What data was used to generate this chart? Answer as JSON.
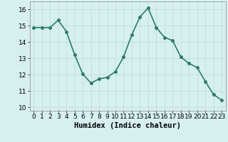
{
  "x": [
    0,
    1,
    2,
    3,
    4,
    5,
    6,
    7,
    8,
    9,
    10,
    11,
    12,
    13,
    14,
    15,
    16,
    17,
    18,
    19,
    20,
    21,
    22,
    23
  ],
  "y": [
    14.9,
    14.9,
    14.9,
    15.35,
    14.65,
    13.25,
    12.05,
    11.5,
    11.75,
    11.85,
    12.2,
    13.1,
    14.45,
    15.55,
    16.1,
    14.9,
    14.3,
    14.1,
    13.1,
    12.7,
    12.45,
    11.6,
    10.8,
    10.45
  ],
  "line_color": "#2e7b6b",
  "marker": "o",
  "marker_size": 2.5,
  "bg_color": "#d6f0ef",
  "grid_color": "#c0dedd",
  "xlabel": "Humidex (Indice chaleur)",
  "xlim": [
    -0.5,
    23.5
  ],
  "ylim": [
    9.8,
    16.5
  ],
  "yticks": [
    10,
    11,
    12,
    13,
    14,
    15,
    16
  ],
  "xticks": [
    0,
    1,
    2,
    3,
    4,
    5,
    6,
    7,
    8,
    9,
    10,
    11,
    12,
    13,
    14,
    15,
    16,
    17,
    18,
    19,
    20,
    21,
    22,
    23
  ],
  "tick_fontsize": 6.5,
  "xlabel_fontsize": 7.5,
  "linewidth": 1.2
}
